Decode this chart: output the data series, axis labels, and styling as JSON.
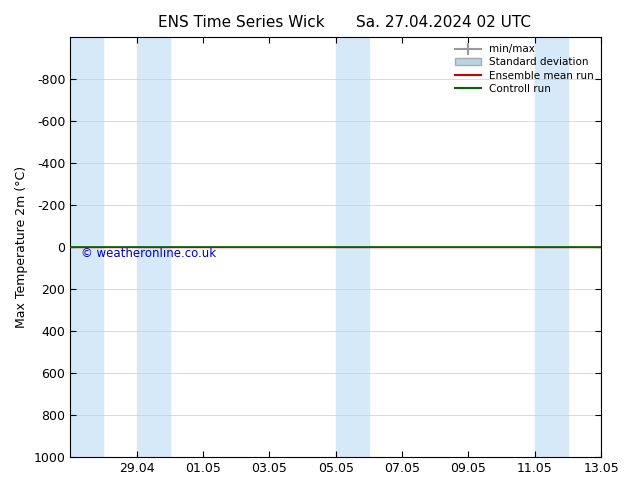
{
  "title_left": "ENS Time Series Wick",
  "title_right": "Sa. 27.04.2024 02 UTC",
  "ylabel": "Max Temperature 2m (°C)",
  "watermark": "© weatheronline.co.uk",
  "watermark_color": "#0000cc",
  "background_color": "#ffffff",
  "plot_bg_color": "#ffffff",
  "ylim_bottom": 1000,
  "ylim_top": -1000,
  "yticks": [
    -800,
    -600,
    -400,
    -200,
    0,
    200,
    400,
    600,
    800,
    1000
  ],
  "xtick_positions": [
    2,
    4,
    6,
    8,
    10,
    12,
    14,
    16
  ],
  "xtick_labels": [
    "29.04",
    "01.05",
    "03.05",
    "05.05",
    "07.05",
    "09.05",
    "11.05",
    "13.05"
  ],
  "xlim_start": 0,
  "xlim_end": 16,
  "shaded_bands": [
    [
      0,
      1
    ],
    [
      2,
      3
    ],
    [
      8,
      9
    ],
    [
      14,
      15
    ],
    [
      16,
      16.5
    ]
  ],
  "shaded_color": "#d6e9f8",
  "control_run_y": 0,
  "control_run_color": "#006600",
  "ensemble_mean_color": "#cc0000",
  "minmax_color": "#999999",
  "stddev_color": "#b8d4e8",
  "legend_labels": [
    "min/max",
    "Standard deviation",
    "Ensemble mean run",
    "Controll run"
  ],
  "title_fontsize": 11,
  "axis_fontsize": 9,
  "ylabel_fontsize": 9,
  "grid_color": "#cccccc",
  "tick_color": "#000000",
  "spine_color": "#000000"
}
